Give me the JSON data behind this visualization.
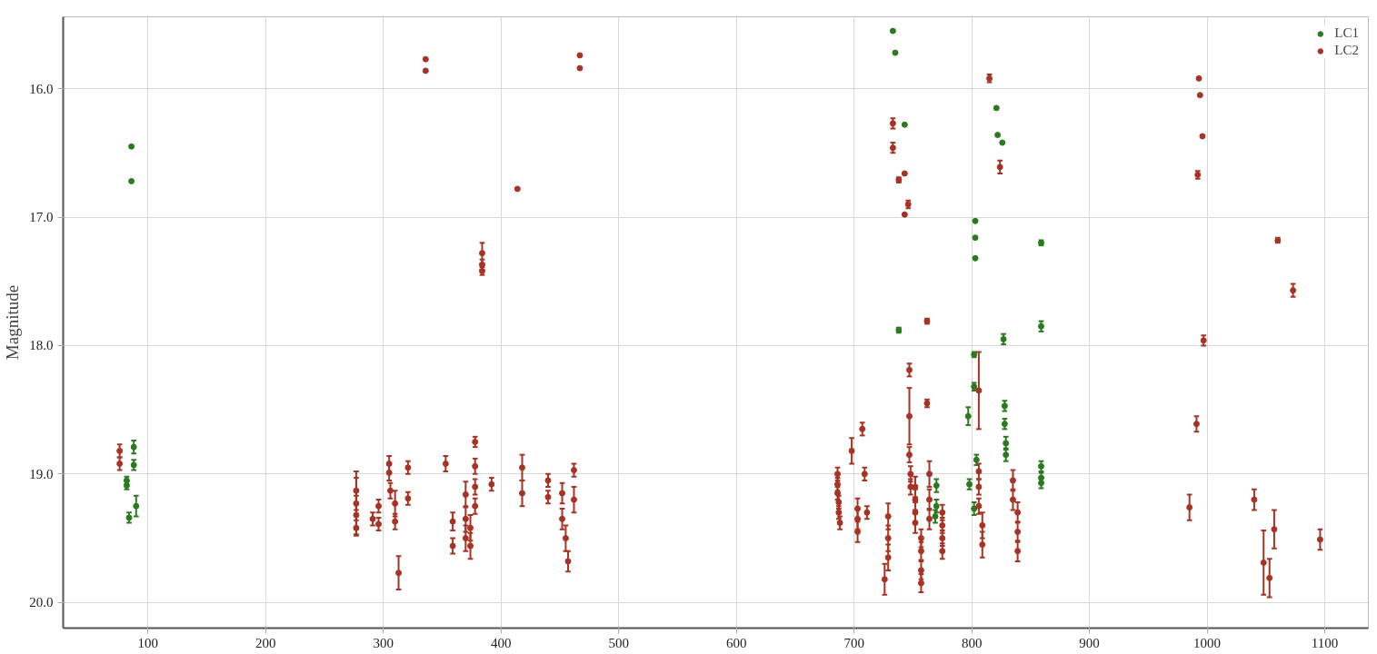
{
  "chart_data": {
    "type": "scatter",
    "ylabel": "Magnitude",
    "marker": "circle",
    "grid": true,
    "legend": "top right",
    "xlim": [
      28,
      1137
    ],
    "ylim": [
      20.2,
      15.44
    ],
    "xticks": [
      100,
      200,
      300,
      400,
      500,
      600,
      700,
      800,
      900,
      1000,
      1100
    ],
    "yticks": [
      {
        "value": 16,
        "label": "16.0"
      },
      {
        "value": 17,
        "label": "17.0"
      },
      {
        "value": 18,
        "label": "18.0"
      },
      {
        "value": 19,
        "label": "19.0"
      },
      {
        "value": 20,
        "label": "20.0"
      }
    ],
    "series": [
      {
        "name": "LC1",
        "color": "#2b7a1f",
        "x": [
          86,
          86,
          88,
          88,
          82,
          82,
          90,
          84,
          733,
          735,
          743,
          821,
          822,
          826,
          803,
          803,
          803,
          859,
          738,
          827,
          859,
          802,
          802,
          797,
          828,
          828,
          829,
          829,
          804,
          859,
          859,
          859,
          798,
          802,
          770,
          770,
          769
        ],
        "values": [
          16.45,
          16.72,
          18.79,
          18.93,
          19.05,
          19.09,
          19.25,
          19.34,
          15.55,
          15.72,
          16.28,
          16.15,
          16.36,
          16.42,
          17.03,
          17.16,
          17.32,
          17.2,
          17.88,
          17.95,
          17.85,
          18.07,
          18.32,
          18.55,
          18.47,
          18.61,
          18.76,
          18.85,
          18.89,
          18.94,
          19.03,
          19.07,
          19.08,
          19.27,
          19.09,
          19.25,
          19.33
        ],
        "errors": [
          null,
          null,
          0.05,
          0.04,
          0.03,
          0.03,
          0.08,
          0.04,
          null,
          null,
          null,
          null,
          null,
          null,
          null,
          null,
          null,
          0.02,
          0.02,
          0.04,
          0.04,
          0.02,
          0.03,
          0.07,
          0.04,
          0.04,
          0.05,
          0.05,
          0.04,
          0.04,
          0.04,
          0.04,
          0.04,
          0.05,
          0.05,
          0.05,
          0.05
        ]
      },
      {
        "name": "LC2",
        "color": "#a83224",
        "x": [
          76,
          76,
          277,
          277,
          277,
          277,
          291,
          296,
          296,
          305,
          305,
          306,
          310,
          310,
          313,
          321,
          321,
          336,
          336,
          353,
          359,
          359,
          370,
          370,
          370,
          374,
          374,
          378,
          378,
          378,
          378,
          384,
          384,
          384,
          392,
          414,
          418,
          418,
          440,
          440,
          452,
          452,
          455,
          457,
          462,
          462,
          467,
          467,
          686,
          686,
          686,
          687,
          687,
          688,
          698,
          707,
          709,
          703,
          703,
          703,
          711,
          729,
          729,
          729,
          726,
          733,
          733,
          738,
          743,
          746,
          743,
          747,
          747,
          747,
          748,
          748,
          752,
          752,
          752,
          752,
          757,
          757,
          757,
          757,
          762,
          762,
          764,
          764,
          764,
          775,
          775,
          775,
          775,
          806,
          806,
          806,
          806,
          809,
          809,
          815,
          824,
          835,
          835,
          839,
          839,
          839,
          985,
          991,
          992,
          993,
          994,
          996,
          997,
          1040,
          1048,
          1053,
          1057,
          1060,
          1073,
          1096
        ],
        "values": [
          18.82,
          18.92,
          19.13,
          19.23,
          19.32,
          19.42,
          19.35,
          19.25,
          19.39,
          18.92,
          18.99,
          19.13,
          19.23,
          19.37,
          19.77,
          18.95,
          19.19,
          15.77,
          15.86,
          18.92,
          19.37,
          19.56,
          19.16,
          19.35,
          19.5,
          19.42,
          19.56,
          18.75,
          18.94,
          19.1,
          19.25,
          17.28,
          17.37,
          17.42,
          19.08,
          16.78,
          18.95,
          19.15,
          19.05,
          19.18,
          19.15,
          19.35,
          19.5,
          19.68,
          18.97,
          19.2,
          15.74,
          15.84,
          19.0,
          19.08,
          19.15,
          19.22,
          19.3,
          19.38,
          18.82,
          18.65,
          19.0,
          19.27,
          19.35,
          19.45,
          19.3,
          19.33,
          19.5,
          19.65,
          19.82,
          16.27,
          16.46,
          16.71,
          16.66,
          16.9,
          16.98,
          18.19,
          18.55,
          18.85,
          19.0,
          19.1,
          19.1,
          19.2,
          19.3,
          19.38,
          19.5,
          19.6,
          19.75,
          19.85,
          17.81,
          18.45,
          19.0,
          19.2,
          19.35,
          19.3,
          19.4,
          19.5,
          19.6,
          18.35,
          18.98,
          19.1,
          19.25,
          19.4,
          19.55,
          15.92,
          16.61,
          19.05,
          19.2,
          19.3,
          19.45,
          19.6,
          19.26,
          18.61,
          16.67,
          15.92,
          16.05,
          16.37,
          17.96,
          19.2,
          19.69,
          19.81,
          19.43,
          17.18,
          17.57,
          19.51
        ],
        "errors": [
          0.05,
          0.05,
          0.15,
          0.2,
          0.15,
          0.06,
          0.05,
          0.05,
          0.05,
          0.06,
          0.06,
          0.06,
          0.1,
          0.06,
          0.13,
          0.05,
          0.05,
          null,
          null,
          0.06,
          0.07,
          0.06,
          0.1,
          0.1,
          0.1,
          0.1,
          0.1,
          0.04,
          0.06,
          0.06,
          0.06,
          0.08,
          0.04,
          0.03,
          0.05,
          null,
          0.1,
          0.1,
          0.05,
          0.05,
          0.08,
          0.08,
          0.1,
          0.08,
          0.05,
          0.1,
          null,
          null,
          0.05,
          0.05,
          0.05,
          0.05,
          0.05,
          0.05,
          0.1,
          0.05,
          0.05,
          0.08,
          0.08,
          0.08,
          0.05,
          0.1,
          0.1,
          0.1,
          0.12,
          0.04,
          0.04,
          0.02,
          null,
          0.03,
          null,
          0.05,
          0.22,
          0.06,
          0.06,
          0.06,
          0.08,
          0.08,
          0.08,
          0.08,
          0.07,
          0.07,
          0.07,
          0.07,
          0.02,
          0.03,
          0.1,
          0.08,
          0.08,
          0.06,
          0.06,
          0.06,
          0.06,
          0.3,
          0.06,
          0.06,
          0.06,
          0.1,
          0.1,
          0.03,
          0.05,
          0.08,
          0.08,
          0.08,
          0.08,
          0.08,
          0.1,
          0.06,
          0.03,
          null,
          null,
          null,
          0.04,
          0.08,
          0.25,
          0.15,
          0.15,
          0.02,
          0.05,
          0.08
        ]
      }
    ]
  }
}
